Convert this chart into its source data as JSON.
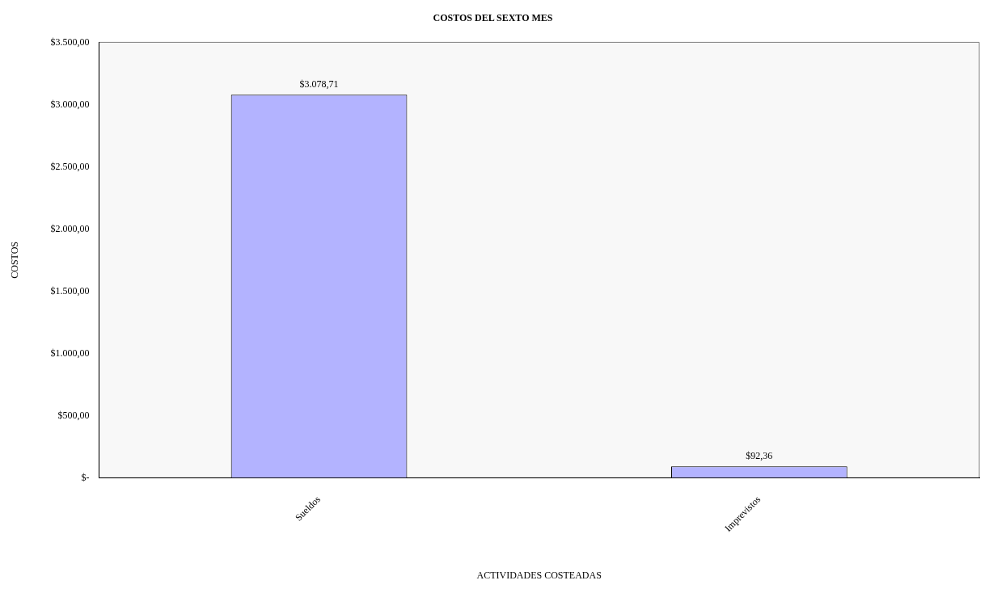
{
  "chart_data": {
    "type": "bar",
    "title": "COSTOS DEL SEXTO MES",
    "xlabel": "ACTIVIDADES COSTEADAS",
    "ylabel": "COSTOS",
    "categories": [
      "Sueldos",
      "Imprevistos"
    ],
    "values": [
      3078.71,
      92.36
    ],
    "value_labels": [
      "$3.078,71",
      "$92,36"
    ],
    "color": "#b3b3ff",
    "ylim": [
      0,
      3500
    ],
    "yticks": [
      {
        "value": 0,
        "label": "$-"
      },
      {
        "value": 500,
        "label": "$500,00"
      },
      {
        "value": 1000,
        "label": "$1.000,00"
      },
      {
        "value": 1500,
        "label": "$1.500,00"
      },
      {
        "value": 2000,
        "label": "$2.000,00"
      },
      {
        "value": 2500,
        "label": "$2.500,00"
      },
      {
        "value": 3000,
        "label": "$3.000,00"
      },
      {
        "value": 3500,
        "label": "$3.500,00"
      }
    ],
    "grid": false,
    "legend": false
  }
}
